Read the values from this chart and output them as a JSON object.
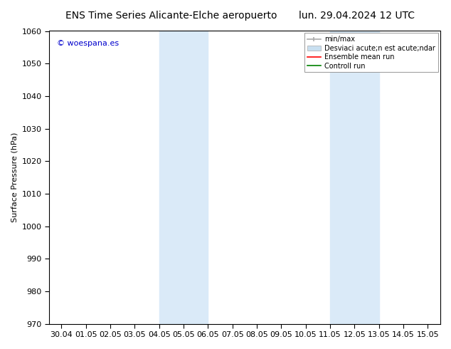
{
  "title_left": "ENS Time Series Alicante-Elche aeropuerto",
  "title_right": "lun. 29.04.2024 12 UTC",
  "ylabel": "Surface Pressure (hPa)",
  "background_color": "#ffffff",
  "plot_bg_color": "#ffffff",
  "ylim": [
    970,
    1060
  ],
  "yticks": [
    970,
    980,
    990,
    1000,
    1010,
    1020,
    1030,
    1040,
    1050,
    1060
  ],
  "xtick_labels": [
    "30.04",
    "01.05",
    "02.05",
    "03.05",
    "04.05",
    "05.05",
    "06.05",
    "07.05",
    "08.05",
    "09.05",
    "10.05",
    "11.05",
    "12.05",
    "13.05",
    "14.05",
    "15.05"
  ],
  "shaded_bands": [
    {
      "xmin": 4.0,
      "xmax": 6.0
    },
    {
      "xmin": 11.0,
      "xmax": 13.0
    }
  ],
  "shaded_color": "#daeaf8",
  "watermark_text": "© woespana.es",
  "watermark_color": "#0000cc",
  "legend_minmax_color": "#aaaaaa",
  "legend_std_color": "#c8dff0",
  "legend_mean_color": "#ff0000",
  "legend_ctrl_color": "#008000",
  "title_fontsize": 10,
  "axis_fontsize": 8,
  "tick_fontsize": 8,
  "watermark_fontsize": 8
}
